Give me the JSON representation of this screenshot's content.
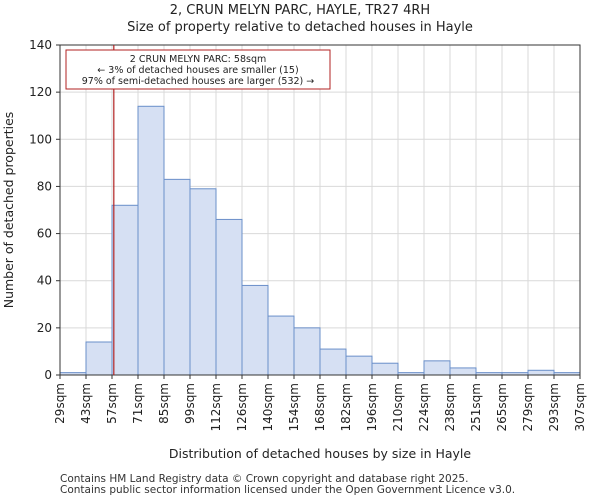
{
  "chart_data": {
    "type": "bar",
    "title": "2, CRUN MELYN PARC, HAYLE, TR27 4RH",
    "subtitle": "Size of property relative to detached houses in Hayle",
    "xlabel": "Distribution of detached houses by size in Hayle",
    "ylabel": "Number of detached properties",
    "ylim": [
      0,
      140
    ],
    "yticks": [
      0,
      20,
      40,
      60,
      80,
      100,
      120,
      140
    ],
    "bin_edges": [
      29,
      43,
      57,
      71,
      85,
      99,
      112,
      126,
      140,
      154,
      168,
      182,
      196,
      210,
      224,
      238,
      251,
      265,
      279,
      293,
      307
    ],
    "tick_labels": [
      "29sqm",
      "43sqm",
      "57sqm",
      "71sqm",
      "85sqm",
      "99sqm",
      "112sqm",
      "126sqm",
      "140sqm",
      "154sqm",
      "168sqm",
      "182sqm",
      "196sqm",
      "210sqm",
      "224sqm",
      "238sqm",
      "251sqm",
      "265sqm",
      "279sqm",
      "293sqm",
      "307sqm"
    ],
    "values": [
      1,
      14,
      72,
      114,
      83,
      79,
      66,
      38,
      25,
      20,
      11,
      8,
      5,
      1,
      6,
      3,
      1,
      1,
      2,
      1
    ],
    "grid": true,
    "bar_color": "#d6e0f3",
    "bar_edge_color": "#6a8fc9",
    "marker": {
      "value_bin": 2.07,
      "color": "#b22222",
      "annotation": [
        "2 CRUN MELYN PARC: 58sqm",
        "← 3% of detached houses are smaller (15)",
        "97% of semi-detached houses are larger (532) →"
      ]
    }
  },
  "footer": {
    "line1": "Contains HM Land Registry data © Crown copyright and database right 2025.",
    "line2": "Contains public sector information licensed under the Open Government Licence v3.0."
  }
}
